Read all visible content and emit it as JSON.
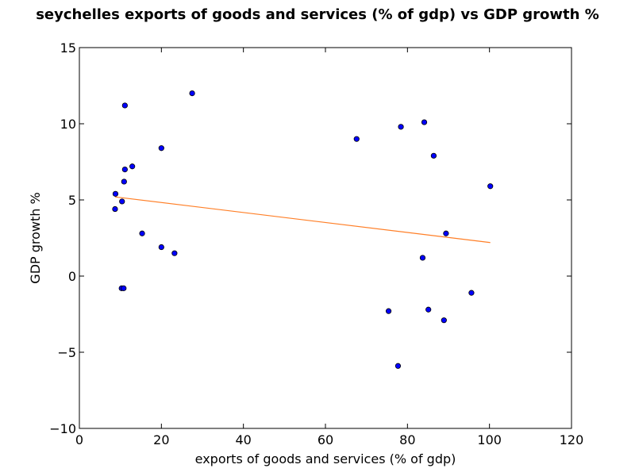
{
  "chart_data": {
    "type": "scatter",
    "title": "seychelles exports of goods and services (% of gdp) vs GDP growth %",
    "xlabel": "exports of goods and services (% of gdp)",
    "ylabel": "GDP growth %",
    "xlim": [
      0,
      120
    ],
    "ylim": [
      -10,
      15
    ],
    "xticks": [
      0,
      20,
      40,
      60,
      80,
      100,
      120
    ],
    "yticks": [
      -10,
      -5,
      0,
      5,
      10,
      15
    ],
    "grid": false,
    "point_color": "#0000ff",
    "line_color": "#ff7f27",
    "points": [
      {
        "x": 8.8,
        "y": 5.4
      },
      {
        "x": 8.7,
        "y": 4.4
      },
      {
        "x": 10.4,
        "y": 4.9
      },
      {
        "x": 10.9,
        "y": 6.2
      },
      {
        "x": 11.1,
        "y": 7.0
      },
      {
        "x": 11.1,
        "y": 11.2
      },
      {
        "x": 12.9,
        "y": 7.2
      },
      {
        "x": 10.3,
        "y": -0.8
      },
      {
        "x": 10.8,
        "y": -0.8
      },
      {
        "x": 15.3,
        "y": 2.8
      },
      {
        "x": 20.0,
        "y": 8.4
      },
      {
        "x": 20.0,
        "y": 1.9
      },
      {
        "x": 23.2,
        "y": 1.5
      },
      {
        "x": 27.5,
        "y": 12.0
      },
      {
        "x": 67.6,
        "y": 9.0
      },
      {
        "x": 75.4,
        "y": -2.3
      },
      {
        "x": 77.7,
        "y": -5.9
      },
      {
        "x": 78.4,
        "y": 9.8
      },
      {
        "x": 83.7,
        "y": 1.2
      },
      {
        "x": 84.1,
        "y": 10.1
      },
      {
        "x": 85.1,
        "y": -2.2
      },
      {
        "x": 86.4,
        "y": 7.9
      },
      {
        "x": 88.9,
        "y": -2.9
      },
      {
        "x": 89.4,
        "y": 2.8
      },
      {
        "x": 95.6,
        "y": -1.1
      },
      {
        "x": 100.2,
        "y": 5.9
      }
    ],
    "trendline": [
      {
        "x": 8.7,
        "y": 5.2
      },
      {
        "x": 100.2,
        "y": 2.2
      }
    ]
  }
}
